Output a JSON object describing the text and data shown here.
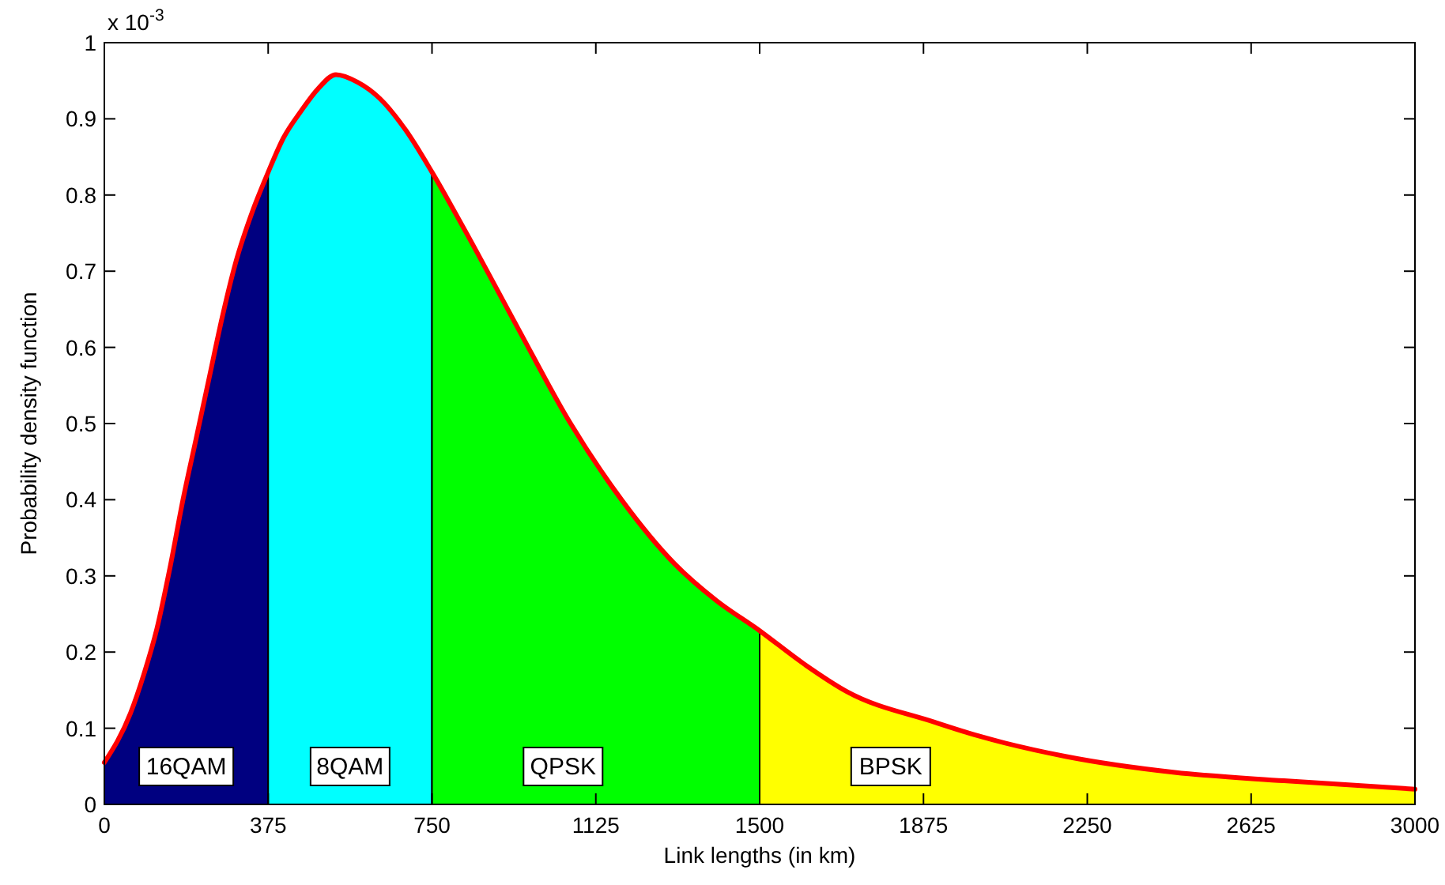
{
  "chart_data": {
    "type": "area",
    "xlabel": "Link lengths (in km)",
    "ylabel": "Probability density function",
    "xlim": [
      0,
      3000
    ],
    "ylim": [
      0,
      1
    ],
    "xticks": [
      0,
      375,
      750,
      1125,
      1500,
      1875,
      2250,
      2625,
      3000
    ],
    "yticks": [
      0,
      0.1,
      0.2,
      0.3,
      0.4,
      0.5,
      0.6,
      0.7,
      0.8,
      0.9,
      1
    ],
    "series": [
      {
        "name": "16QAM",
        "color": "#000080",
        "x": [
          0,
          60,
          90,
          120,
          150,
          180,
          210,
          240,
          270,
          300,
          340,
          375
        ],
        "values": [
          0.055,
          0.12,
          0.17,
          0.23,
          0.31,
          0.4,
          0.48,
          0.56,
          0.64,
          0.71,
          0.78,
          0.83
        ]
      },
      {
        "name": "8QAM",
        "color": "#00ffff",
        "x": [
          375,
          410,
          450,
          490,
          530,
          580,
          630,
          690,
          750
        ],
        "values": [
          0.83,
          0.875,
          0.91,
          0.94,
          0.958,
          0.948,
          0.927,
          0.885,
          0.83
        ]
      },
      {
        "name": "QPSK",
        "color": "#00ff00",
        "x": [
          750,
          825,
          945,
          1065,
          1185,
          1305,
          1400,
          1500
        ],
        "values": [
          0.83,
          0.754,
          0.627,
          0.502,
          0.399,
          0.316,
          0.268,
          0.228
        ]
      },
      {
        "name": "BPSK",
        "color": "#ffff00",
        "x": [
          1500,
          1600,
          1700,
          1900,
          2000,
          2200,
          2450,
          2700,
          3000
        ],
        "values": [
          0.228,
          0.185,
          0.148,
          0.108,
          0.09,
          0.063,
          0.042,
          0.031,
          0.02
        ]
      },
      {
        "type": "line",
        "color": "#ff0000",
        "x": [
          0,
          60,
          90,
          120,
          150,
          180,
          210,
          240,
          270,
          300,
          340,
          375,
          410,
          450,
          490,
          530,
          580,
          630,
          690,
          750,
          825,
          945,
          1065,
          1185,
          1305,
          1400,
          1500,
          1600,
          1700,
          1900,
          2000,
          2200,
          2450,
          2700,
          3000
        ],
        "values": [
          0.055,
          0.12,
          0.17,
          0.23,
          0.31,
          0.4,
          0.48,
          0.56,
          0.64,
          0.71,
          0.78,
          0.83,
          0.875,
          0.91,
          0.94,
          0.958,
          0.948,
          0.927,
          0.885,
          0.83,
          0.754,
          0.627,
          0.502,
          0.399,
          0.316,
          0.268,
          0.228,
          0.185,
          0.148,
          0.108,
          0.09,
          0.063,
          0.042,
          0.031,
          0.02
        ]
      }
    ],
    "annotations": [
      "x 10$^{-3}$"
    ]
  }
}
